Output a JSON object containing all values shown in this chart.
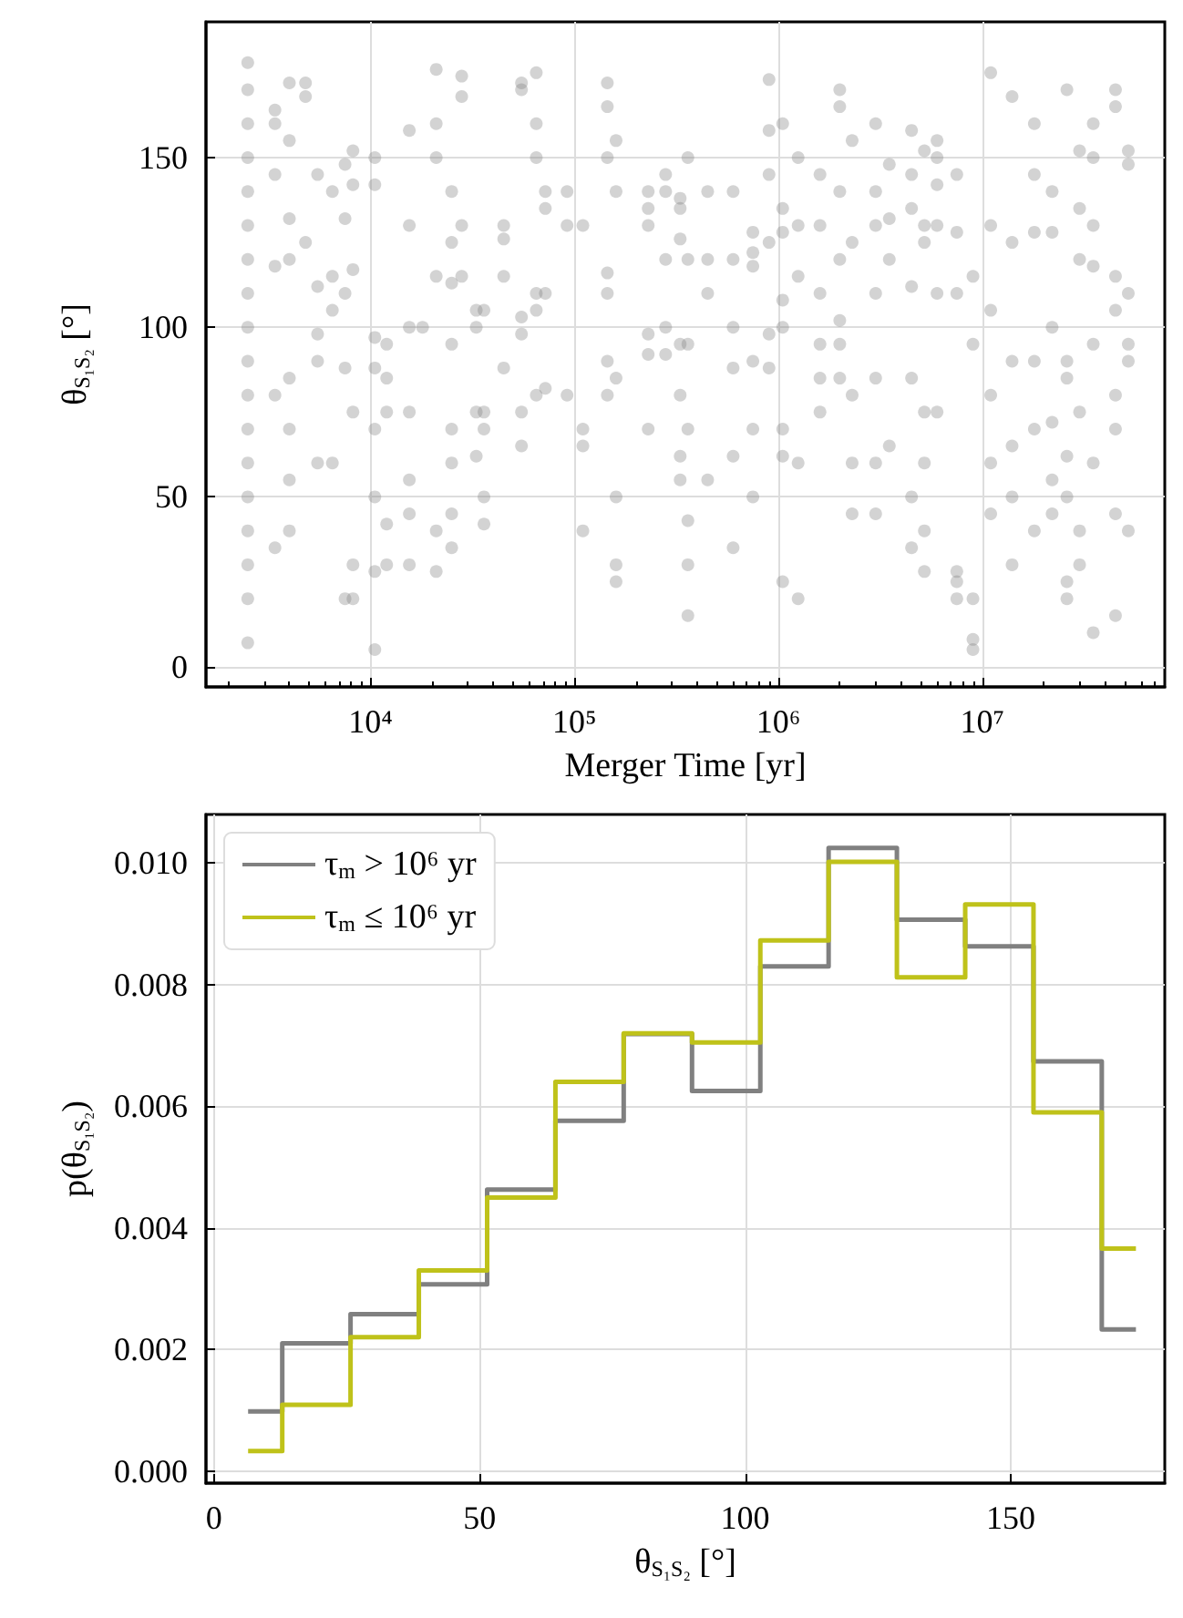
{
  "chart_data": [
    {
      "type": "scatter",
      "xlabel": "Merger Time [yr]",
      "ylabel": "θ$_{S₁S₂}$ [°]",
      "log": "x",
      "grid": true,
      "legend": false,
      "marker": "circle",
      "xlim": [
        1560,
        78500000
      ],
      "ylim": [
        -6,
        190
      ],
      "xticks": [
        {
          "value": 10000,
          "label": "10⁴"
        },
        {
          "value": 100000,
          "label": "10⁵"
        },
        {
          "value": 1000000,
          "label": "10⁶"
        },
        {
          "value": 10000000,
          "label": "10⁷"
        }
      ],
      "yticks": [
        0,
        50,
        100,
        150
      ],
      "series": [
        {
          "color": "#808080",
          "x": [
            2500,
            2500,
            2500,
            2500,
            2500,
            2500,
            2500,
            2500,
            2500,
            2500,
            2500,
            2500,
            2500,
            2500,
            2500,
            2500,
            2500,
            2500,
            3400,
            3400,
            3400,
            3400,
            3400,
            3400,
            4000,
            4000,
            4000,
            4000,
            4000,
            4000,
            4000,
            4000,
            4800,
            4800,
            4800,
            5500,
            5500,
            5500,
            5500,
            5500,
            6500,
            6500,
            6500,
            6500,
            7500,
            7500,
            7500,
            7500,
            7500,
            8200,
            8200,
            8200,
            8200,
            8200,
            8200,
            10500,
            10500,
            10500,
            10500,
            10500,
            10500,
            10500,
            10500,
            12000,
            12000,
            12000,
            12000,
            12000,
            15500,
            15500,
            15500,
            15500,
            15500,
            15500,
            15500,
            18000,
            21000,
            21000,
            21000,
            21000,
            21000,
            21000,
            25000,
            25000,
            25000,
            25000,
            25000,
            25000,
            25000,
            25000,
            28000,
            28000,
            28000,
            28000,
            33000,
            33000,
            33000,
            33000,
            36000,
            36000,
            36000,
            36000,
            36000,
            45000,
            45000,
            45000,
            45000,
            55000,
            55000,
            55000,
            55000,
            55000,
            55000,
            65000,
            65000,
            65000,
            65000,
            65000,
            65000,
            72000,
            72000,
            72000,
            72000,
            92000,
            92000,
            92000,
            110000,
            110000,
            110000,
            110000,
            145000,
            145000,
            145000,
            145000,
            145000,
            145000,
            145000,
            160000,
            160000,
            160000,
            160000,
            160000,
            160000,
            230000,
            230000,
            230000,
            230000,
            230000,
            230000,
            280000,
            280000,
            280000,
            280000,
            280000,
            330000,
            330000,
            330000,
            330000,
            330000,
            330000,
            330000,
            360000,
            360000,
            360000,
            360000,
            360000,
            360000,
            360000,
            450000,
            450000,
            450000,
            450000,
            600000,
            600000,
            600000,
            600000,
            600000,
            600000,
            750000,
            750000,
            750000,
            750000,
            750000,
            750000,
            900000,
            900000,
            900000,
            900000,
            900000,
            900000,
            1050000,
            1050000,
            1050000,
            1050000,
            1050000,
            1050000,
            1050000,
            1050000,
            1250000,
            1250000,
            1250000,
            1250000,
            1250000,
            1600000,
            1600000,
            1600000,
            1600000,
            1600000,
            1600000,
            2000000,
            2000000,
            2000000,
            2000000,
            2000000,
            2000000,
            2000000,
            2300000,
            2300000,
            2300000,
            2300000,
            2300000,
            3000000,
            3000000,
            3000000,
            3000000,
            3000000,
            3000000,
            3000000,
            3500000,
            3500000,
            3500000,
            3500000,
            4500000,
            4500000,
            4500000,
            4500000,
            4500000,
            4500000,
            4500000,
            5200000,
            5200000,
            5200000,
            5200000,
            5200000,
            5200000,
            5200000,
            6000000,
            6000000,
            6000000,
            6000000,
            6000000,
            6000000,
            7500000,
            7500000,
            7500000,
            7500000,
            7500000,
            7500000,
            9000000,
            9000000,
            9000000,
            9000000,
            9000000,
            11000000,
            11000000,
            11000000,
            11000000,
            11000000,
            11000000,
            14000000,
            14000000,
            14000000,
            14000000,
            14000000,
            14000000,
            18000000,
            18000000,
            18000000,
            18000000,
            18000000,
            18000000,
            22000000,
            22000000,
            22000000,
            22000000,
            22000000,
            22000000,
            26000000,
            26000000,
            26000000,
            26000000,
            26000000,
            26000000,
            26000000,
            30000000,
            30000000,
            30000000,
            30000000,
            30000000,
            30000000,
            35000000,
            35000000,
            35000000,
            35000000,
            35000000,
            35000000,
            35000000,
            45000000,
            45000000,
            45000000,
            45000000,
            45000000,
            45000000,
            45000000,
            45000000,
            52000000,
            52000000,
            52000000,
            52000000,
            52000000,
            52000000
          ],
          "values": [
            178,
            170,
            160,
            150,
            140,
            130,
            120,
            110,
            100,
            90,
            80,
            70,
            60,
            50,
            40,
            30,
            20,
            7,
            164,
            160,
            145,
            118,
            80,
            35,
            172,
            155,
            132,
            120,
            85,
            70,
            55,
            40,
            172,
            168,
            125,
            145,
            112,
            98,
            90,
            60,
            140,
            115,
            105,
            60,
            148,
            132,
            110,
            88,
            20,
            152,
            142,
            117,
            75,
            30,
            20,
            150,
            142,
            97,
            88,
            70,
            50,
            28,
            5,
            95,
            85,
            75,
            42,
            30,
            158,
            130,
            100,
            75,
            55,
            45,
            30,
            100,
            176,
            160,
            150,
            115,
            40,
            28,
            140,
            125,
            113,
            95,
            70,
            60,
            45,
            35,
            174,
            168,
            130,
            115,
            105,
            100,
            75,
            62,
            105,
            75,
            70,
            50,
            42,
            126,
            130,
            115,
            88,
            172,
            170,
            103,
            98,
            75,
            65,
            175,
            160,
            150,
            110,
            105,
            80,
            140,
            135,
            110,
            82,
            140,
            130,
            80,
            130,
            70,
            65,
            40,
            172,
            165,
            150,
            116,
            110,
            90,
            80,
            155,
            140,
            85,
            50,
            30,
            25,
            140,
            135,
            130,
            98,
            92,
            70,
            145,
            140,
            120,
            100,
            92,
            138,
            135,
            126,
            95,
            80,
            62,
            55,
            150,
            120,
            95,
            70,
            43,
            30,
            15,
            140,
            120,
            110,
            55,
            140,
            120,
            100,
            88,
            62,
            35,
            128,
            122,
            118,
            90,
            70,
            50,
            173,
            158,
            145,
            125,
            98,
            88,
            160,
            135,
            128,
            108,
            100,
            70,
            62,
            25,
            150,
            130,
            115,
            60,
            20,
            145,
            130,
            110,
            95,
            85,
            75,
            170,
            165,
            140,
            120,
            102,
            95,
            85,
            155,
            125,
            80,
            60,
            45,
            160,
            140,
            130,
            110,
            85,
            60,
            45,
            148,
            132,
            120,
            65,
            158,
            145,
            135,
            112,
            85,
            50,
            35,
            152,
            130,
            125,
            75,
            60,
            40,
            28,
            155,
            150,
            142,
            130,
            110,
            75,
            145,
            128,
            110,
            28,
            20,
            25,
            115,
            95,
            20,
            5,
            8,
            175,
            130,
            105,
            80,
            60,
            45,
            168,
            125,
            90,
            65,
            50,
            30,
            160,
            145,
            128,
            90,
            70,
            40,
            140,
            128,
            100,
            72,
            55,
            45,
            170,
            90,
            85,
            62,
            50,
            25,
            20,
            152,
            135,
            120,
            75,
            40,
            30,
            160,
            150,
            130,
            118,
            95,
            60,
            10,
            170,
            165,
            115,
            105,
            80,
            70,
            45,
            15,
            152,
            148,
            110,
            95,
            90,
            40
          ]
        }
      ]
    },
    {
      "type": "step",
      "xlabel": "θ$_{S₁S₂}$ [°]",
      "ylabel": "p(θ$_{S₁S₂}$)",
      "grid": true,
      "legend": "top left",
      "marker": "none",
      "xlim": [
        -1.5,
        179
      ],
      "ylim": [
        -0.0002,
        0.0108
      ],
      "xticks": [
        0,
        50,
        100,
        150
      ],
      "yticks": [
        {
          "value": 0,
          "label": "0.000"
        },
        {
          "value": 0.002,
          "label": "0.002"
        },
        {
          "value": 0.004,
          "label": "0.004"
        },
        {
          "value": 0.006,
          "label": "0.006"
        },
        {
          "value": 0.008,
          "label": "0.008"
        },
        {
          "value": 0.01,
          "label": "0.010"
        }
      ],
      "x": [
        6.43,
        19.29,
        32.14,
        45,
        57.86,
        70.71,
        83.57,
        96.43,
        109.29,
        122.14,
        135,
        147.86,
        160.71,
        173.57
      ],
      "series": [
        {
          "name": "τ$_{m}$ > 10⁶ yr",
          "color": "#808080",
          "values": [
            0.00098,
            0.0021,
            0.00258,
            0.00307,
            0.00463,
            0.00576,
            0.00719,
            0.00625,
            0.0083,
            0.01025,
            0.00907,
            0.00863,
            0.00674,
            0.00233
          ]
        },
        {
          "name": "τ$_{m}$ ≤ 10⁶ yr",
          "color": "#bfc21a",
          "values": [
            0.00033,
            0.00109,
            0.0022,
            0.0033,
            0.0045,
            0.0064,
            0.0072,
            0.00705,
            0.00873,
            0.01002,
            0.00812,
            0.00932,
            0.0059,
            0.00366
          ]
        }
      ]
    }
  ]
}
